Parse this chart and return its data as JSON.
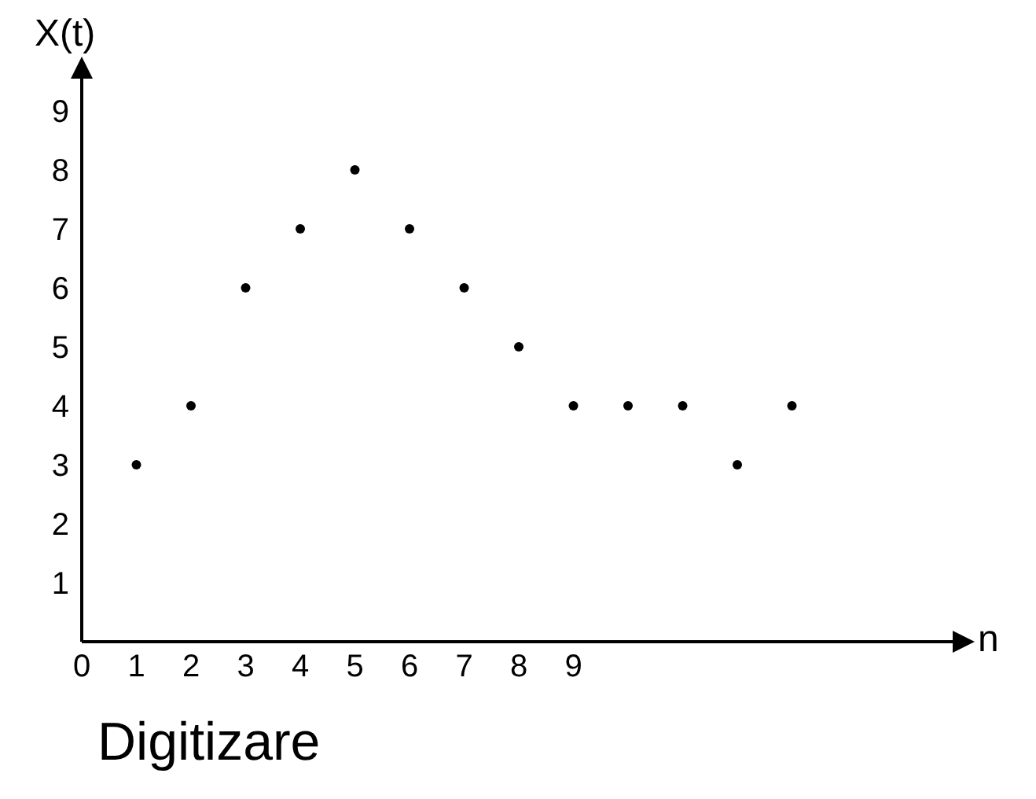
{
  "chart_data": {
    "type": "scatter",
    "xlabel": "n",
    "ylabel": "X(t)",
    "x": [
      1,
      2,
      3,
      4,
      5,
      6,
      7,
      8,
      9,
      10,
      11,
      12,
      13
    ],
    "series": [
      {
        "color": "#000000",
        "values": [
          3,
          4,
          6,
          7,
          8,
          7,
          6,
          5,
          4,
          4,
          4,
          3,
          4
        ]
      }
    ],
    "xlim": [
      0,
      16
    ],
    "xticks": [
      {
        "value": 0,
        "label": "0"
      },
      1,
      2,
      3,
      4,
      5,
      6,
      7,
      8,
      9
    ],
    "ylim": [
      0,
      9.6
    ],
    "yticks": [
      1,
      2,
      3,
      4,
      5,
      6,
      7,
      8,
      9
    ],
    "grid": false,
    "marker": "circle",
    "annotations": [
      "Digitizare"
    ]
  }
}
